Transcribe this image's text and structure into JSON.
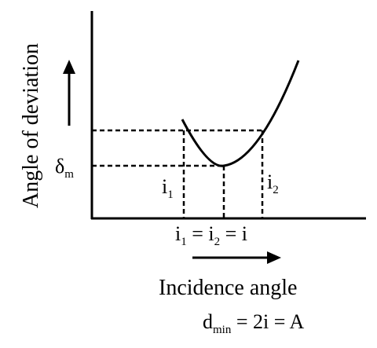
{
  "axes": {
    "y_label": "Angle of deviation",
    "x_label": "Incidence angle"
  },
  "labels": {
    "delta_min": {
      "symbol": "δ",
      "subscript": "m"
    },
    "i1": {
      "symbol": "i",
      "subscript": "1"
    },
    "i2": {
      "symbol": "i",
      "subscript": "2"
    },
    "equality": {
      "parts": [
        "i",
        "1",
        " = i",
        "2",
        " = i"
      ]
    },
    "formula": {
      "parts": [
        "d",
        "min",
        " = 2i = A"
      ]
    }
  }
}
